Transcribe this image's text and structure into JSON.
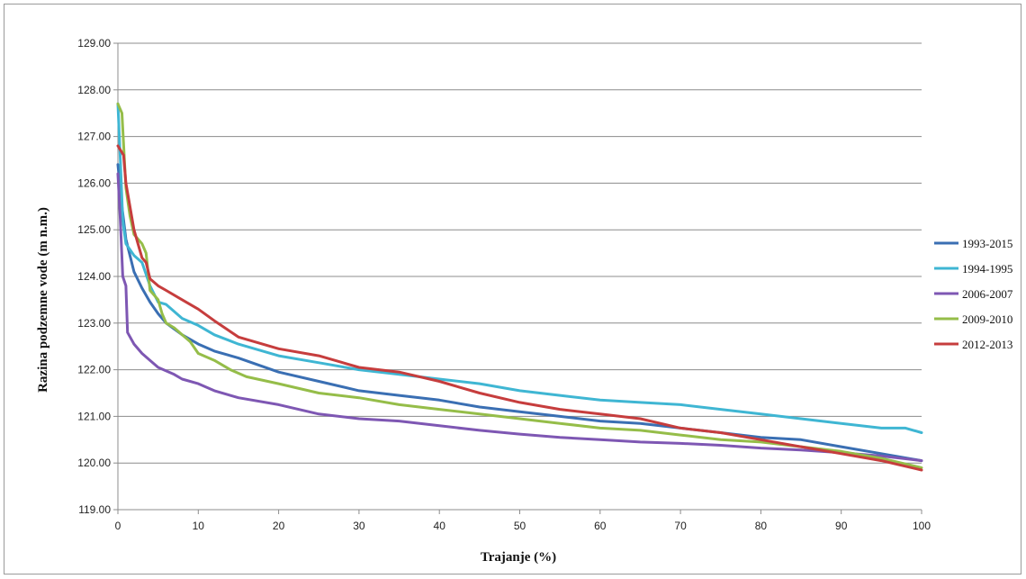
{
  "chart_data": {
    "type": "line",
    "title": "",
    "xlabel": "Trajanje (%)",
    "ylabel": "Razina podzemne vode (m n.m.)",
    "xlim": [
      0,
      100
    ],
    "ylim": [
      119,
      129
    ],
    "x_ticks": [
      "0",
      "10",
      "20",
      "30",
      "40",
      "50",
      "60",
      "70",
      "80",
      "90",
      "100"
    ],
    "y_ticks": [
      "119.00",
      "120.00",
      "121.00",
      "122.00",
      "123.00",
      "124.00",
      "125.00",
      "126.00",
      "127.00",
      "128.00",
      "129.00"
    ],
    "grid": "horizontal",
    "legend_position": "right",
    "series": [
      {
        "name": "1993-2015",
        "color": "#3a6fb3",
        "points": [
          [
            0,
            126.4
          ],
          [
            0.5,
            125.5
          ],
          [
            1,
            124.8
          ],
          [
            2,
            124.1
          ],
          [
            3,
            123.75
          ],
          [
            4,
            123.45
          ],
          [
            5,
            123.2
          ],
          [
            6,
            123.0
          ],
          [
            8,
            122.75
          ],
          [
            10,
            122.55
          ],
          [
            12,
            122.4
          ],
          [
            15,
            122.25
          ],
          [
            20,
            121.95
          ],
          [
            25,
            121.75
          ],
          [
            30,
            121.55
          ],
          [
            35,
            121.45
          ],
          [
            40,
            121.35
          ],
          [
            45,
            121.2
          ],
          [
            50,
            121.1
          ],
          [
            55,
            121.0
          ],
          [
            60,
            120.9
          ],
          [
            65,
            120.85
          ],
          [
            70,
            120.75
          ],
          [
            75,
            120.65
          ],
          [
            80,
            120.55
          ],
          [
            85,
            120.5
          ],
          [
            90,
            120.35
          ],
          [
            95,
            120.2
          ],
          [
            100,
            120.05
          ]
        ]
      },
      {
        "name": "1994-1995",
        "color": "#3fb6d3",
        "points": [
          [
            0,
            127.7
          ],
          [
            0.3,
            126.5
          ],
          [
            0.6,
            125.2
          ],
          [
            1,
            124.7
          ],
          [
            2,
            124.45
          ],
          [
            3,
            124.3
          ],
          [
            4,
            123.8
          ],
          [
            5,
            123.45
          ],
          [
            6,
            123.4
          ],
          [
            8,
            123.1
          ],
          [
            10,
            122.95
          ],
          [
            12,
            122.75
          ],
          [
            15,
            122.55
          ],
          [
            20,
            122.3
          ],
          [
            25,
            122.15
          ],
          [
            30,
            122.0
          ],
          [
            35,
            121.9
          ],
          [
            40,
            121.8
          ],
          [
            45,
            121.7
          ],
          [
            50,
            121.55
          ],
          [
            55,
            121.45
          ],
          [
            60,
            121.35
          ],
          [
            65,
            121.3
          ],
          [
            70,
            121.25
          ],
          [
            75,
            121.15
          ],
          [
            80,
            121.05
          ],
          [
            85,
            120.95
          ],
          [
            90,
            120.85
          ],
          [
            95,
            120.75
          ],
          [
            98,
            120.75
          ],
          [
            100,
            120.65
          ]
        ]
      },
      {
        "name": "2006-2007",
        "color": "#7e57b3",
        "points": [
          [
            0,
            126.2
          ],
          [
            0.3,
            125.2
          ],
          [
            0.6,
            124.0
          ],
          [
            1,
            123.8
          ],
          [
            1.2,
            122.8
          ],
          [
            2,
            122.55
          ],
          [
            3,
            122.35
          ],
          [
            4,
            122.2
          ],
          [
            5,
            122.05
          ],
          [
            7,
            121.9
          ],
          [
            8,
            121.8
          ],
          [
            10,
            121.7
          ],
          [
            12,
            121.55
          ],
          [
            15,
            121.4
          ],
          [
            20,
            121.25
          ],
          [
            25,
            121.05
          ],
          [
            30,
            120.95
          ],
          [
            35,
            120.9
          ],
          [
            40,
            120.8
          ],
          [
            45,
            120.7
          ],
          [
            50,
            120.62
          ],
          [
            55,
            120.55
          ],
          [
            60,
            120.5
          ],
          [
            65,
            120.45
          ],
          [
            70,
            120.42
          ],
          [
            75,
            120.38
          ],
          [
            80,
            120.32
          ],
          [
            85,
            120.28
          ],
          [
            90,
            120.22
          ],
          [
            95,
            120.15
          ],
          [
            100,
            120.05
          ]
        ]
      },
      {
        "name": "2009-2010",
        "color": "#95bd49",
        "points": [
          [
            0,
            127.7
          ],
          [
            0.5,
            127.5
          ],
          [
            1,
            125.9
          ],
          [
            1.5,
            125.3
          ],
          [
            2,
            124.9
          ],
          [
            3,
            124.7
          ],
          [
            3.5,
            124.5
          ],
          [
            4,
            123.7
          ],
          [
            5,
            123.5
          ],
          [
            5.5,
            123.2
          ],
          [
            6,
            123.0
          ],
          [
            7,
            122.9
          ],
          [
            8,
            122.75
          ],
          [
            9,
            122.6
          ],
          [
            10,
            122.35
          ],
          [
            12,
            122.2
          ],
          [
            14,
            122.0
          ],
          [
            16,
            121.85
          ],
          [
            20,
            121.7
          ],
          [
            25,
            121.5
          ],
          [
            30,
            121.4
          ],
          [
            35,
            121.25
          ],
          [
            40,
            121.15
          ],
          [
            45,
            121.05
          ],
          [
            50,
            120.95
          ],
          [
            55,
            120.85
          ],
          [
            60,
            120.75
          ],
          [
            65,
            120.7
          ],
          [
            70,
            120.6
          ],
          [
            75,
            120.5
          ],
          [
            80,
            120.45
          ],
          [
            85,
            120.35
          ],
          [
            90,
            120.25
          ],
          [
            95,
            120.1
          ],
          [
            100,
            119.9
          ]
        ]
      },
      {
        "name": "2012-2013",
        "color": "#c63d3d",
        "points": [
          [
            0,
            126.8
          ],
          [
            0.7,
            126.6
          ],
          [
            1,
            126.0
          ],
          [
            1.5,
            125.5
          ],
          [
            2,
            125.0
          ],
          [
            2.5,
            124.7
          ],
          [
            3,
            124.4
          ],
          [
            3.5,
            124.3
          ],
          [
            4,
            123.95
          ],
          [
            5,
            123.8
          ],
          [
            6,
            123.7
          ],
          [
            8,
            123.5
          ],
          [
            10,
            123.3
          ],
          [
            12,
            123.05
          ],
          [
            15,
            122.7
          ],
          [
            20,
            122.45
          ],
          [
            25,
            122.3
          ],
          [
            30,
            122.05
          ],
          [
            35,
            121.95
          ],
          [
            40,
            121.75
          ],
          [
            45,
            121.5
          ],
          [
            50,
            121.3
          ],
          [
            55,
            121.15
          ],
          [
            60,
            121.05
          ],
          [
            65,
            120.95
          ],
          [
            70,
            120.75
          ],
          [
            75,
            120.65
          ],
          [
            80,
            120.5
          ],
          [
            85,
            120.35
          ],
          [
            90,
            120.2
          ],
          [
            95,
            120.05
          ],
          [
            100,
            119.85
          ]
        ]
      }
    ]
  }
}
